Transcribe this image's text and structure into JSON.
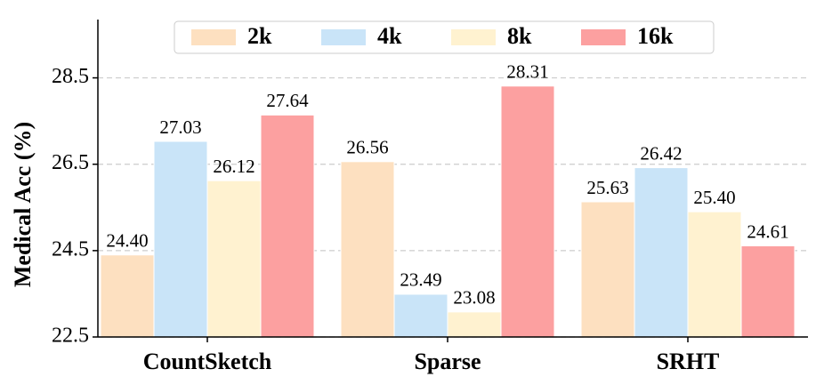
{
  "chart_data": {
    "type": "bar",
    "y_label": "Medical Acc (%)",
    "categories": [
      "CountSketch",
      "Sparse",
      "SRHT"
    ],
    "series": [
      {
        "name": "2k",
        "color": "#fde0c0",
        "values": [
          24.4,
          26.56,
          25.63
        ],
        "value_labels": [
          "24.40",
          "26.56",
          "25.63"
        ]
      },
      {
        "name": "4k",
        "color": "#c9e4f8",
        "values": [
          27.03,
          23.49,
          26.42
        ],
        "value_labels": [
          "27.03",
          "23.49",
          "26.42"
        ]
      },
      {
        "name": "8k",
        "color": "#fff2d0",
        "values": [
          26.12,
          23.08,
          25.4
        ],
        "value_labels": [
          "26.12",
          "23.08",
          "25.40"
        ]
      },
      {
        "name": "16k",
        "color": "#fca0a0",
        "values": [
          27.64,
          28.31,
          24.61
        ],
        "value_labels": [
          "27.64",
          "28.31",
          "24.61"
        ]
      }
    ],
    "ylim": [
      22.5,
      29.85
    ],
    "yticks": [
      22.5,
      24.5,
      26.5,
      28.5
    ],
    "grid": true,
    "legend": "top"
  }
}
